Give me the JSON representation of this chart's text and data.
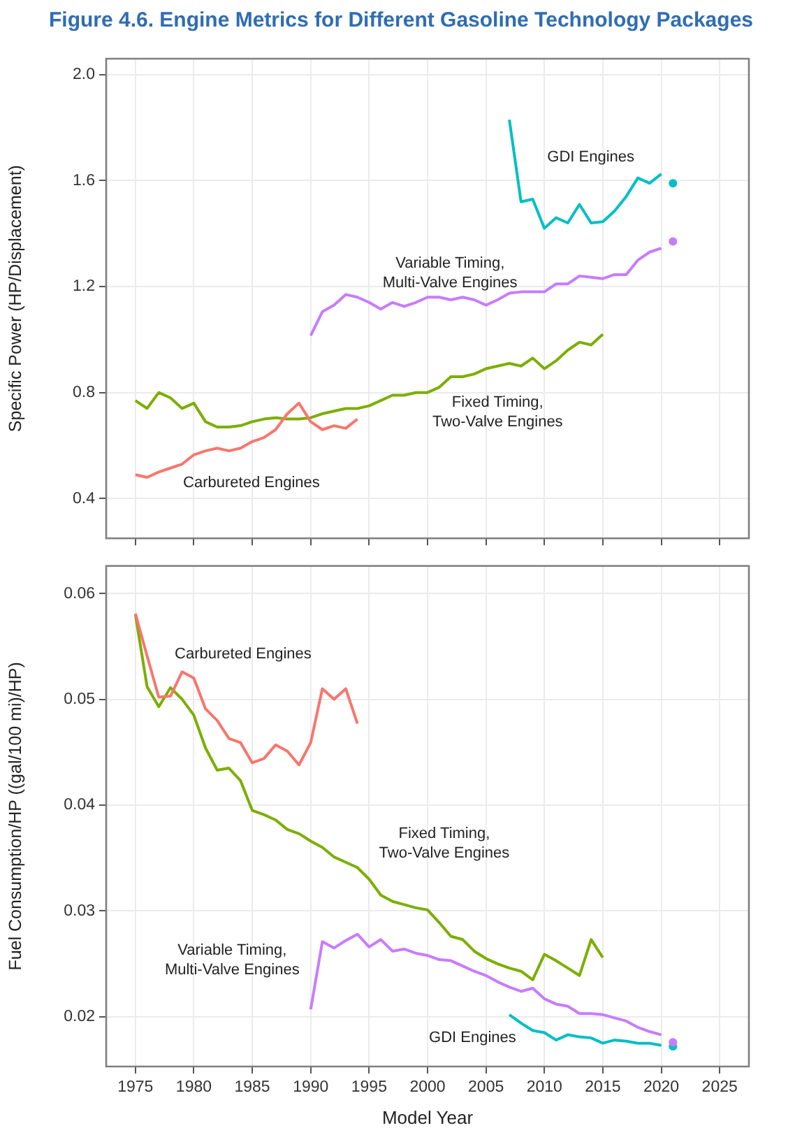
{
  "chart_data": [
    {
      "type": "line",
      "title": "Figure 4.6. Engine Metrics for Different Gasoline Technology Packages",
      "ylabel": "Specific Power (HP/Displacement)",
      "xlim": [
        1972.5,
        2027.5
      ],
      "xticks": [
        1975,
        1980,
        1985,
        1990,
        1995,
        2000,
        2005,
        2010,
        2015,
        2020,
        2025
      ],
      "ylim": [
        0.25,
        2.06
      ],
      "yticks": [
        0.4,
        0.8,
        1.2,
        1.6,
        {
          "value": 2.0,
          "label": "2.0"
        }
      ],
      "grid": true,
      "tick_labels": "y",
      "series": [
        {
          "name": "Carbureted Engines",
          "color": "#f8766d",
          "x": [
            1975,
            1976,
            1977,
            1978,
            1979,
            1980,
            1981,
            1982,
            1983,
            1984,
            1985,
            1986,
            1987,
            1988,
            1989,
            1990,
            1991,
            1992,
            1993,
            1994
          ],
          "values": [
            0.49,
            0.48,
            0.5,
            0.515,
            0.53,
            0.565,
            0.58,
            0.59,
            0.58,
            0.59,
            0.615,
            0.63,
            0.66,
            0.72,
            0.76,
            0.69,
            0.66,
            0.675,
            0.665,
            0.7
          ]
        },
        {
          "name": "Fixed Timing,\nTwo-Valve Engines",
          "color": "#7cae00",
          "x": [
            1975,
            1976,
            1977,
            1978,
            1979,
            1980,
            1981,
            1982,
            1983,
            1984,
            1985,
            1986,
            1987,
            1988,
            1989,
            1990,
            1991,
            1992,
            1993,
            1994,
            1995,
            1996,
            1997,
            1998,
            1999,
            2000,
            2001,
            2002,
            2003,
            2004,
            2005,
            2006,
            2007,
            2008,
            2009,
            2010,
            2011,
            2012,
            2013,
            2014,
            2015
          ],
          "values": [
            0.77,
            0.74,
            0.8,
            0.78,
            0.74,
            0.76,
            0.69,
            0.67,
            0.67,
            0.675,
            0.69,
            0.7,
            0.705,
            0.7,
            0.7,
            0.705,
            0.72,
            0.73,
            0.74,
            0.74,
            0.75,
            0.77,
            0.79,
            0.79,
            0.8,
            0.8,
            0.82,
            0.86,
            0.86,
            0.87,
            0.89,
            0.9,
            0.91,
            0.9,
            0.93,
            0.89,
            0.92,
            0.96,
            0.99,
            0.98,
            1.02
          ]
        },
        {
          "name": "Variable Timing,\nMulti-Valve Engines",
          "color": "#c77cff",
          "x": [
            1990,
            1991,
            1992,
            1993,
            1994,
            1995,
            1996,
            1997,
            1998,
            1999,
            2000,
            2001,
            2002,
            2003,
            2004,
            2005,
            2006,
            2007,
            2008,
            2009,
            2010,
            2011,
            2012,
            2013,
            2014,
            2015,
            2016,
            2017,
            2018,
            2019,
            2020
          ],
          "values": [
            1.015,
            1.105,
            1.13,
            1.17,
            1.16,
            1.14,
            1.115,
            1.14,
            1.125,
            1.14,
            1.16,
            1.16,
            1.15,
            1.16,
            1.15,
            1.13,
            1.15,
            1.175,
            1.18,
            1.18,
            1.18,
            1.21,
            1.21,
            1.24,
            1.235,
            1.23,
            1.245,
            1.245,
            1.3,
            1.33,
            1.345
          ]
        },
        {
          "type": "scatter",
          "color": "#c77cff",
          "x": [
            2021
          ],
          "values": [
            1.37
          ]
        },
        {
          "name": "GDI Engines",
          "color": "#00bfc4",
          "x": [
            2007,
            2008,
            2009,
            2010,
            2011,
            2012,
            2013,
            2014,
            2015,
            2016,
            2017,
            2018,
            2019,
            2020
          ],
          "values": [
            1.83,
            1.52,
            1.53,
            1.42,
            1.46,
            1.44,
            1.51,
            1.44,
            1.445,
            1.485,
            1.54,
            1.61,
            1.59,
            1.625
          ]
        },
        {
          "type": "scatter",
          "color": "#00bfc4",
          "x": [
            2021
          ],
          "values": [
            1.59
          ]
        }
      ]
    },
    {
      "type": "line",
      "xlabel": "Model Year",
      "ylabel": "Fuel Consumption/HP ((gal/100 mi)/HP)",
      "xlim": [
        1972.5,
        2027.5
      ],
      "xticks": [
        1975,
        1980,
        1985,
        1990,
        1995,
        2000,
        2005,
        2010,
        2015,
        2020,
        2025
      ],
      "ylim": [
        0.0153,
        0.0626
      ],
      "yticks": [
        0.02,
        0.03,
        0.04,
        0.05,
        0.06
      ],
      "grid": true,
      "series": [
        {
          "name": "Carbureted Engines",
          "color": "#f8766d",
          "x": [
            1975,
            1976,
            1977,
            1978,
            1979,
            1980,
            1981,
            1982,
            1983,
            1984,
            1985,
            1986,
            1987,
            1988,
            1989,
            1990,
            1991,
            1992,
            1993,
            1994
          ],
          "values": [
            0.0581,
            0.0541,
            0.0502,
            0.0503,
            0.0526,
            0.052,
            0.0491,
            0.048,
            0.0463,
            0.0459,
            0.044,
            0.0444,
            0.0457,
            0.0451,
            0.0438,
            0.0459,
            0.051,
            0.05,
            0.051,
            0.0477
          ]
        },
        {
          "name": "Fixed Timing,\nTwo-Valve Engines",
          "color": "#7cae00",
          "x": [
            1975,
            1976,
            1977,
            1978,
            1979,
            1980,
            1981,
            1982,
            1983,
            1984,
            1985,
            1986,
            1987,
            1988,
            1989,
            1990,
            1991,
            1992,
            1993,
            1994,
            1995,
            1996,
            1997,
            1998,
            1999,
            2000,
            2001,
            2002,
            2003,
            2004,
            2005,
            2006,
            2007,
            2008,
            2009,
            2010,
            2011,
            2012,
            2013,
            2014,
            2015
          ],
          "values": [
            0.058,
            0.0512,
            0.0493,
            0.0511,
            0.05,
            0.0485,
            0.0454,
            0.0433,
            0.0435,
            0.0423,
            0.0395,
            0.0391,
            0.0386,
            0.0377,
            0.0373,
            0.0366,
            0.036,
            0.0351,
            0.0346,
            0.0341,
            0.033,
            0.0315,
            0.0309,
            0.0306,
            0.0303,
            0.0301,
            0.0289,
            0.0276,
            0.0273,
            0.0262,
            0.0255,
            0.025,
            0.0246,
            0.0243,
            0.0235,
            0.0259,
            0.0253,
            0.0246,
            0.0239,
            0.0273,
            0.0256
          ]
        },
        {
          "name": "Variable Timing,\nMulti-Valve Engines",
          "color": "#c77cff",
          "x": [
            1990,
            1991,
            1992,
            1993,
            1994,
            1995,
            1996,
            1997,
            1998,
            1999,
            2000,
            2001,
            2002,
            2003,
            2004,
            2005,
            2006,
            2007,
            2008,
            2009,
            2010,
            2011,
            2012,
            2013,
            2014,
            2015,
            2016,
            2017,
            2018,
            2019,
            2020
          ],
          "values": [
            0.0207,
            0.0271,
            0.0265,
            0.0272,
            0.0278,
            0.0266,
            0.0273,
            0.0262,
            0.0264,
            0.026,
            0.0258,
            0.0254,
            0.0253,
            0.0248,
            0.0243,
            0.0239,
            0.0233,
            0.0228,
            0.0224,
            0.0227,
            0.0217,
            0.0212,
            0.021,
            0.0203,
            0.0203,
            0.0202,
            0.0199,
            0.0196,
            0.019,
            0.0186,
            0.0183
          ]
        },
        {
          "type": "scatter",
          "color": "#c77cff",
          "x": [
            2021
          ],
          "values": [
            0.0176
          ]
        },
        {
          "name": "GDI Engines",
          "color": "#00bfc4",
          "x": [
            2007,
            2008,
            2009,
            2010,
            2011,
            2012,
            2013,
            2014,
            2015,
            2016,
            2017,
            2018,
            2019,
            2020
          ],
          "values": [
            0.0202,
            0.0194,
            0.0187,
            0.0185,
            0.0178,
            0.0183,
            0.0181,
            0.018,
            0.0175,
            0.0178,
            0.0177,
            0.0175,
            0.0175,
            0.0173
          ]
        },
        {
          "type": "scatter",
          "color": "#00bfc4",
          "x": [
            2021
          ],
          "values": [
            0.0172
          ]
        }
      ]
    }
  ]
}
